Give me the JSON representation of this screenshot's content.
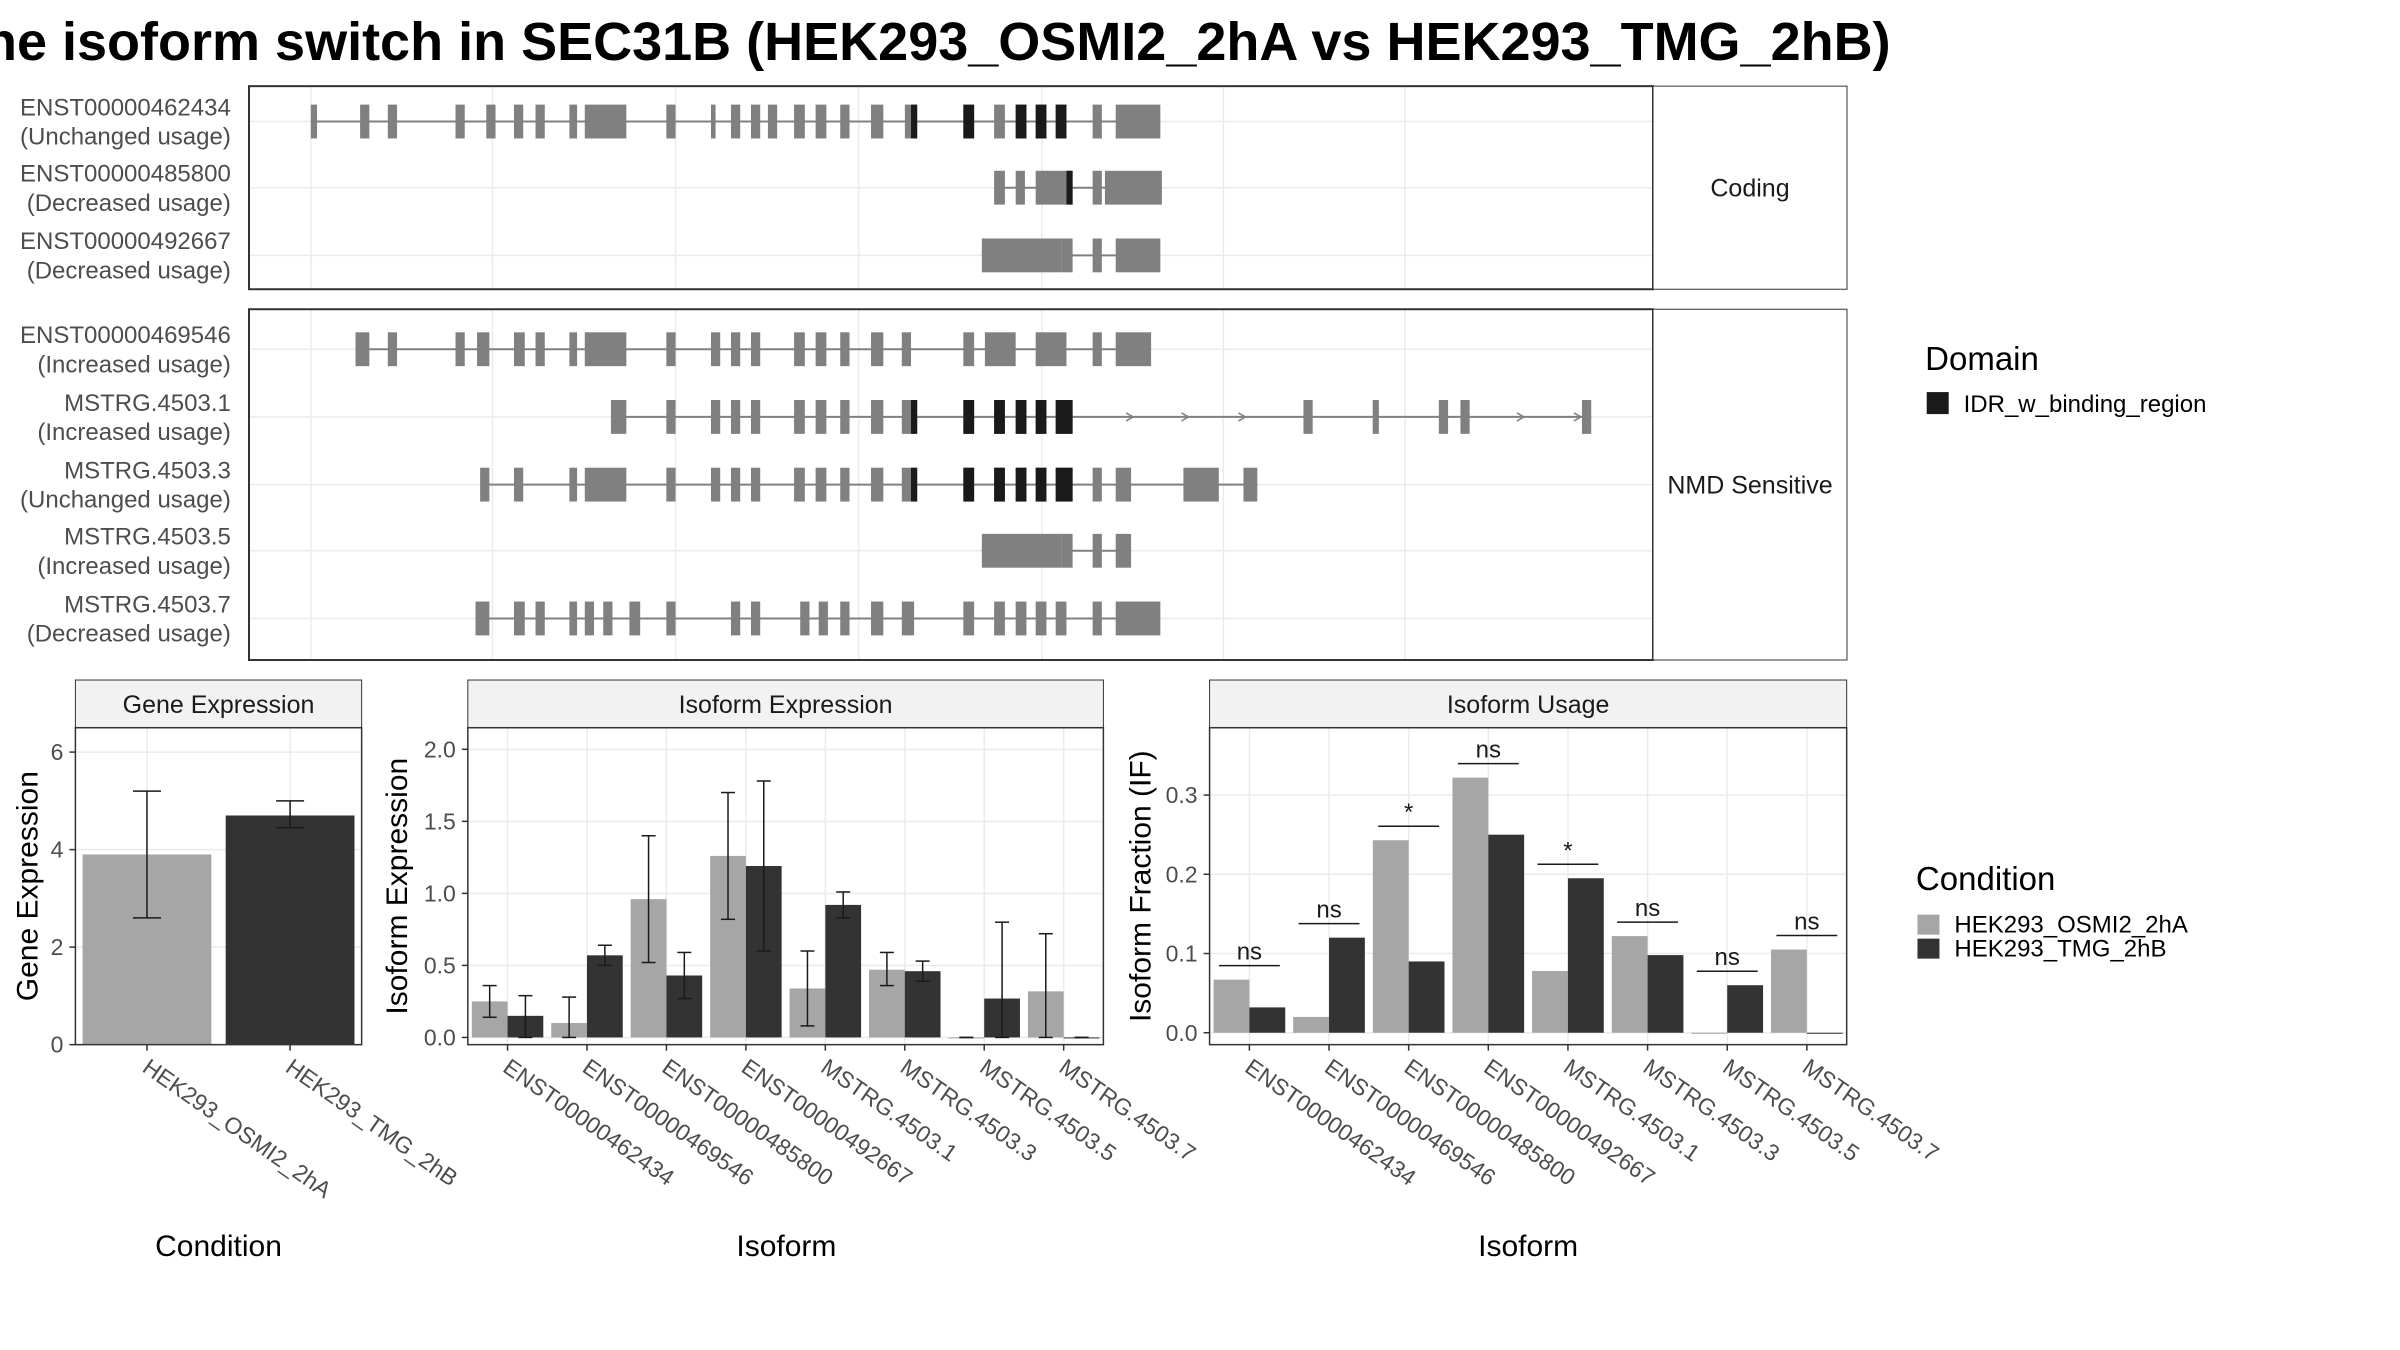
{
  "title": "he isoform switch in SEC31B (HEK293_OSMI2_2hA vs HEK293_TMG_2hB)",
  "colors": {
    "background": "#ffffff",
    "transcript": "#808080",
    "domain": "#1a1a1a",
    "osmi": "#a6a6a6",
    "tmg": "#333333",
    "grid": "#ebebeb",
    "strip": "#f2f2f2",
    "border": "#333333"
  },
  "structure": {
    "facets": [
      {
        "label": "Coding",
        "transcripts": [
          {
            "id": "ENST00000462434",
            "status": "(Unchanged usage)"
          },
          {
            "id": "ENST00000485800",
            "status": "(Decreased usage)"
          },
          {
            "id": "ENST00000492667",
            "status": "(Decreased usage)"
          }
        ]
      },
      {
        "label": "NMD Sensitive",
        "transcripts": [
          {
            "id": "ENST00000469546",
            "status": "(Increased usage)"
          },
          {
            "id": "MSTRG.4503.1",
            "status": "(Increased usage)"
          },
          {
            "id": "MSTRG.4503.3",
            "status": "(Unchanged usage)"
          },
          {
            "id": "MSTRG.4503.5",
            "status": "(Increased usage)"
          },
          {
            "id": "MSTRG.4503.7",
            "status": "(Decreased usage)"
          }
        ]
      }
    ],
    "legend_title": "Domain",
    "legend_items": [
      {
        "label": "IDR_w_binding_region",
        "color": "#1a1a1a"
      }
    ]
  },
  "chart_data": [
    {
      "type": "bar",
      "title": "Gene Expression",
      "xlabel": "Condition",
      "ylabel": "Gene Expression",
      "categories": [
        "HEK293_OSMI2_2hA",
        "HEK293_TMG_2hB"
      ],
      "values": [
        3.9,
        4.7
      ],
      "error_low": [
        2.6,
        4.45
      ],
      "error_high": [
        5.2,
        5.0
      ],
      "ylim": [
        0,
        6.5
      ],
      "yticks": [
        0,
        2,
        4,
        6
      ]
    },
    {
      "type": "bar",
      "title": "Isoform Expression",
      "xlabel": "Isoform",
      "ylabel": "Isoform Expression",
      "categories": [
        "ENST00000462434",
        "ENST00000469546",
        "ENST00000485800",
        "ENST00000492667",
        "MSTRG.4503.1",
        "MSTRG.4503.3",
        "MSTRG.4503.5",
        "MSTRG.4503.7"
      ],
      "series": [
        {
          "name": "HEK293_OSMI2_2hA",
          "values": [
            0.25,
            0.1,
            0.96,
            1.26,
            0.34,
            0.47,
            0.0,
            0.32
          ],
          "error_low": [
            0.14,
            0.0,
            0.52,
            0.82,
            0.08,
            0.36,
            0.0,
            0.0
          ],
          "error_high": [
            0.36,
            0.28,
            1.4,
            1.7,
            0.6,
            0.59,
            0.0,
            0.72
          ]
        },
        {
          "name": "HEK293_TMG_2hB",
          "values": [
            0.15,
            0.57,
            0.43,
            1.19,
            0.92,
            0.46,
            0.27,
            0.0
          ],
          "error_low": [
            0.0,
            0.5,
            0.27,
            0.6,
            0.83,
            0.39,
            0.0,
            0.0
          ],
          "error_high": [
            0.29,
            0.64,
            0.59,
            1.78,
            1.01,
            0.53,
            0.8,
            0.0
          ]
        }
      ],
      "ylim": [
        -0.05,
        2.15
      ],
      "yticks": [
        0.0,
        0.5,
        1.0,
        1.5,
        2.0
      ]
    },
    {
      "type": "bar",
      "title": "Isoform Usage",
      "xlabel": "Isoform",
      "ylabel": "Isoform Fraction (IF)",
      "categories": [
        "ENST00000462434",
        "ENST00000469546",
        "ENST00000485800",
        "ENST00000492667",
        "MSTRG.4503.1",
        "MSTRG.4503.3",
        "MSTRG.4503.5",
        "MSTRG.4503.7"
      ],
      "series": [
        {
          "name": "HEK293_OSMI2_2hA",
          "values": [
            0.067,
            0.02,
            0.243,
            0.322,
            0.078,
            0.122,
            0.0,
            0.105
          ]
        },
        {
          "name": "HEK293_TMG_2hB",
          "values": [
            0.032,
            0.12,
            0.09,
            0.25,
            0.195,
            0.098,
            0.06,
            0.0
          ]
        }
      ],
      "significance": [
        "ns",
        "ns",
        "*",
        "ns",
        "*",
        "ns",
        "ns",
        "ns"
      ],
      "ylim": [
        -0.015,
        0.385
      ],
      "yticks": [
        0.0,
        0.1,
        0.2,
        0.3
      ],
      "legend_title": "Condition",
      "legend": [
        "HEK293_OSMI2_2hA",
        "HEK293_TMG_2hB"
      ]
    }
  ]
}
